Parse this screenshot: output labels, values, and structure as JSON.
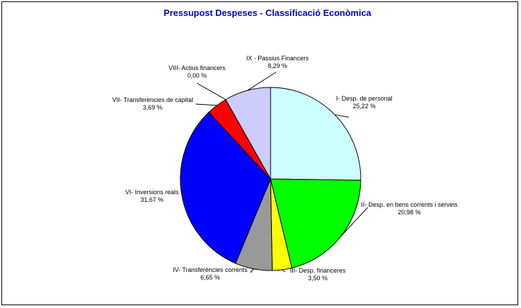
{
  "chart_data": {
    "type": "pie",
    "title": "Pressupost Despeses - Classificació Econòmica",
    "slices": [
      {
        "name": "I- Desp. de personal",
        "value": 25.22,
        "label": "25,22 %",
        "color": "#ccffff"
      },
      {
        "name": "II- Desp. en bens corrents i serveis",
        "value": 20.98,
        "label": "20,98 %",
        "color": "#00ff00"
      },
      {
        "name": "III- Desp. financeres",
        "value": 3.5,
        "label": "3,50 %",
        "color": "#ffff00"
      },
      {
        "name": "IV- Transferències corrents",
        "value": 6.65,
        "label": "6,65 %",
        "color": "#999999"
      },
      {
        "name": "VI- Inversions reals",
        "value": 31.67,
        "label": "31,67 %",
        "color": "#0000ff"
      },
      {
        "name": "VII- Transferències de capital",
        "value": 3.69,
        "label": "3,69 %",
        "color": "#ff0000"
      },
      {
        "name": "VIII- Actius financers",
        "value": 0.0,
        "label": "0,00 %",
        "color": "#ffffff"
      },
      {
        "name": "IX - Passius Financers",
        "value": 8.29,
        "label": "8,29 %",
        "color": "#ccccff"
      }
    ],
    "start_angle": "12 o'clock",
    "direction": "clockwise",
    "legend": "none"
  }
}
